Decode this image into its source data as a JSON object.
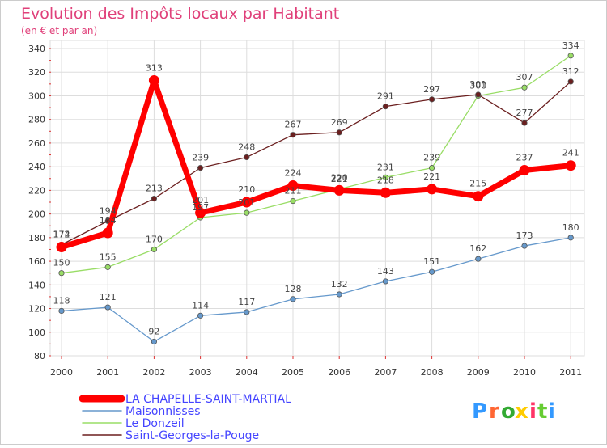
{
  "chart_data": {
    "type": "line",
    "title": "Evolution des Impôts locaux par Habitant",
    "subtitle": "(en € et par an)",
    "xlabel": "",
    "ylabel": "",
    "categories": [
      "2000",
      "2001",
      "2002",
      "2003",
      "2004",
      "2005",
      "2006",
      "2007",
      "2008",
      "2009",
      "2010",
      "2011"
    ],
    "ylim": [
      80,
      340
    ],
    "yticks": [
      80,
      100,
      120,
      140,
      160,
      180,
      200,
      220,
      240,
      260,
      280,
      300,
      320,
      340
    ],
    "grid": true,
    "legend_position": "bottom-left",
    "series": [
      {
        "name": "LA CHAPELLE-SAINT-MARTIAL",
        "color": "#ff0000",
        "emphasis": true,
        "values": [
          172,
          184,
          313,
          201,
          210,
          224,
          220,
          218,
          221,
          215,
          237,
          241
        ]
      },
      {
        "name": "Maisonnisses",
        "color": "#6699cc",
        "emphasis": false,
        "values": [
          118,
          121,
          92,
          114,
          117,
          128,
          132,
          143,
          151,
          162,
          173,
          180
        ]
      },
      {
        "name": "Le Donzeil",
        "color": "#99dd66",
        "emphasis": false,
        "values": [
          150,
          155,
          170,
          197,
          201,
          211,
          221,
          231,
          239,
          300,
          307,
          334
        ]
      },
      {
        "name": "Saint-Georges-la-Pouge",
        "color": "#6b1f1f",
        "emphasis": false,
        "values": [
          174,
          194,
          213,
          239,
          248,
          267,
          269,
          291,
          297,
          301,
          277,
          312
        ]
      }
    ]
  },
  "branding": {
    "logo_text": "Proxiti"
  },
  "colors": {
    "title": "#e0407a",
    "legend_text": "#4444ff",
    "axis": "#999999",
    "grid": "#dddddd"
  }
}
